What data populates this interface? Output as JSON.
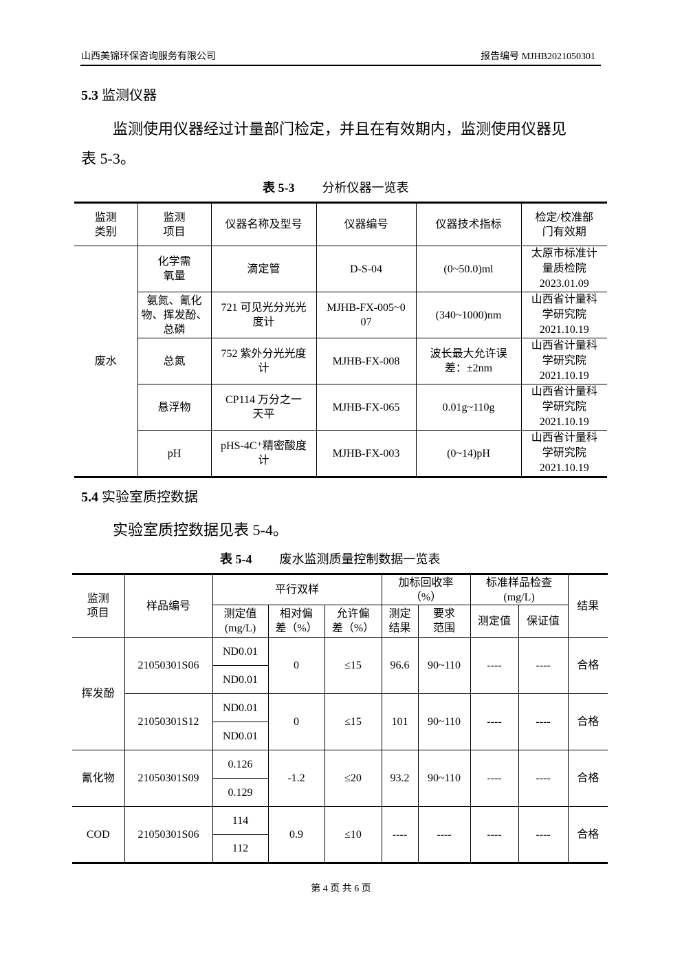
{
  "header": {
    "company": "山西美锦环保咨询服务有限公司",
    "report_no": "报告编号 MJHB2021050301"
  },
  "section53": {
    "num": "5.3",
    "title": "监测仪器",
    "para1": "监测使用仪器经过计量部门检定，并且在有效期内，监测使用仪器见",
    "para2": "表 5-3。"
  },
  "table53": {
    "caption_num": "表 5-3",
    "caption_title": "分析仪器一览表",
    "headers": [
      "监测\n类别",
      "监测\n项目",
      "仪器名称及型号",
      "仪器编号",
      "仪器技术指标",
      "检定/校准部\n门有效期"
    ],
    "category": "废水",
    "rows": [
      [
        "化学需\n氧量",
        "滴定管",
        "D-S-04",
        "(0~50.0)ml",
        "太原市标准计\n量质检院\n2023.01.09"
      ],
      [
        "氨氮、氰化\n物、挥发酚、\n总磷",
        "721 可见光分光光\n度计",
        "MJHB-FX-005~0\n07",
        "(340~1000)nm",
        "山西省计量科\n学研究院\n2021.10.19"
      ],
      [
        "总氮",
        "752 紫外分光光度\n计",
        "MJHB-FX-008",
        "波长最大允许误\n差：±2nm",
        "山西省计量科\n学研究院\n2021.10.19"
      ],
      [
        "悬浮物",
        "CP114 万分之一\n天平",
        "MJHB-FX-065",
        "0.01g~110g",
        "山西省计量科\n学研究院\n2021.10.19"
      ],
      [
        "pH",
        "pHS-4C⁺精密酸度\n计",
        "MJHB-FX-003",
        "(0~14)pH",
        "山西省计量科\n学研究院\n2021.10.19"
      ]
    ]
  },
  "section54": {
    "num": "5.4",
    "title": "实验室质控数据",
    "para": "实验室质控数据见表 5-4。"
  },
  "table54": {
    "caption_num": "表 5-4",
    "caption_title": "废水监测质量控制数据一览表",
    "h_item": "监测\n项目",
    "h_sample": "样品编号",
    "h_parallel": "平行双样",
    "h_recovery": "加标回收率\n（%）",
    "h_standard": "标准样品检查\n(mg/L)",
    "h_result": "结果",
    "sub": [
      "测定值\n(mg/L)",
      "相对偏\n差（%）",
      "允许偏\n差（%）",
      "测定\n结果",
      "要求\n范围",
      "测定值",
      "保证值"
    ],
    "groups": [
      {
        "item": "挥发酚",
        "samples": [
          {
            "id": "21050301S06",
            "values": [
              "ND0.01",
              "ND0.01"
            ],
            "rel": "0",
            "allow": "≤15",
            "rec": "96.6",
            "range": "90~110",
            "std_meas": "----",
            "std_guar": "----",
            "result": "合格"
          },
          {
            "id": "21050301S12",
            "values": [
              "ND0.01",
              "ND0.01"
            ],
            "rel": "0",
            "allow": "≤15",
            "rec": "101",
            "range": "90~110",
            "std_meas": "----",
            "std_guar": "----",
            "result": "合格"
          }
        ]
      },
      {
        "item": "氰化物",
        "samples": [
          {
            "id": "21050301S09",
            "values": [
              "0.126",
              "0.129"
            ],
            "rel": "-1.2",
            "allow": "≤20",
            "rec": "93.2",
            "range": "90~110",
            "std_meas": "----",
            "std_guar": "----",
            "result": "合格"
          }
        ]
      },
      {
        "item": "COD",
        "samples": [
          {
            "id": "21050301S06",
            "values": [
              "114",
              "112"
            ],
            "rel": "0.9",
            "allow": "≤10",
            "rec": "----",
            "range": "----",
            "std_meas": "----",
            "std_guar": "----",
            "result": "合格"
          }
        ]
      }
    ]
  },
  "footer": "第 4 页 共 6 页"
}
